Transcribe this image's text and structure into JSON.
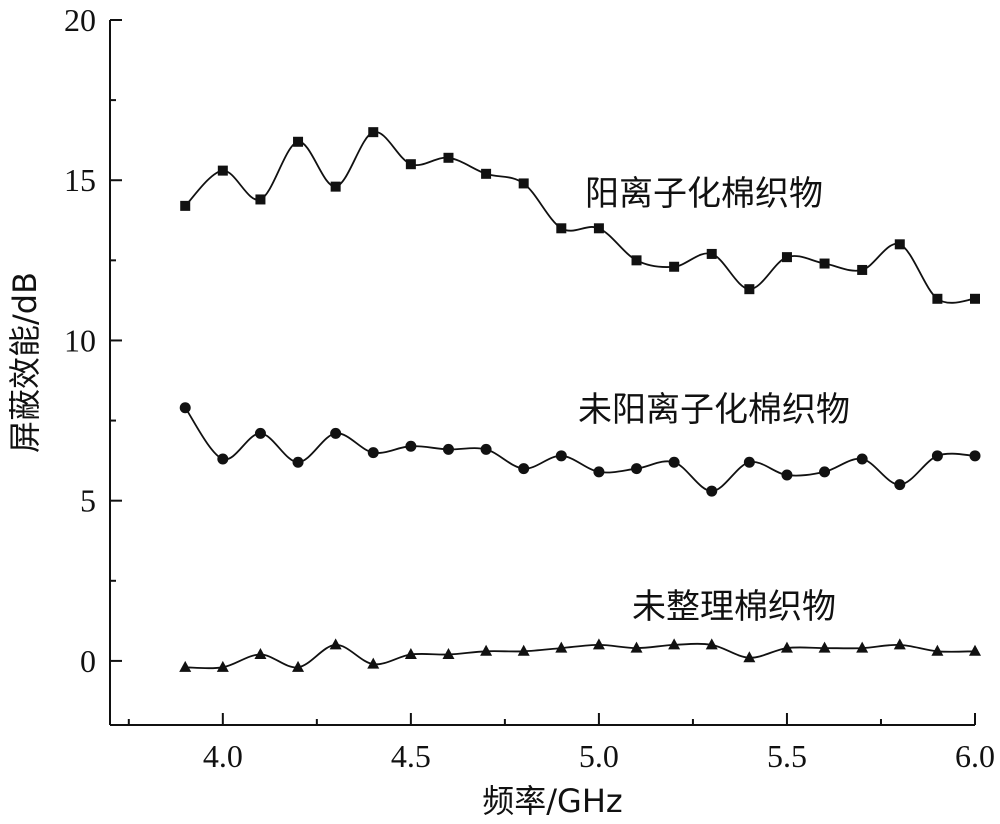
{
  "chart_data": {
    "type": "line",
    "title": "",
    "xlabel": "频率/GHz",
    "ylabel": "屏蔽效能/dB",
    "xlim": [
      3.7,
      6.0
    ],
    "ylim": [
      -2,
      20
    ],
    "xticks": [
      4.0,
      4.5,
      5.0,
      5.5,
      6.0
    ],
    "xtick_labels": [
      "4.0",
      "4.5",
      "5.0",
      "5.5",
      "6.0"
    ],
    "yticks": [
      0,
      5,
      10,
      15,
      20
    ],
    "ytick_labels": [
      "0",
      "5",
      "10",
      "15",
      "20"
    ],
    "grid": false,
    "x": [
      3.9,
      4.0,
      4.1,
      4.2,
      4.3,
      4.4,
      4.5,
      4.6,
      4.7,
      4.8,
      4.9,
      5.0,
      5.1,
      5.2,
      5.3,
      5.4,
      5.5,
      5.6,
      5.7,
      5.8,
      5.9,
      6.0
    ],
    "series": [
      {
        "name": "阳离子化棉织物",
        "marker": "square",
        "values": [
          14.2,
          15.3,
          14.4,
          16.2,
          14.8,
          16.5,
          15.5,
          15.7,
          15.2,
          14.9,
          13.5,
          13.5,
          12.5,
          12.3,
          12.7,
          11.6,
          12.6,
          12.4,
          12.2,
          13.0,
          11.3,
          11.3
        ]
      },
      {
        "name": "未阳离子化棉织物",
        "marker": "circle",
        "values": [
          7.9,
          6.3,
          7.1,
          6.2,
          7.1,
          6.5,
          6.7,
          6.6,
          6.6,
          6.0,
          6.4,
          5.9,
          6.0,
          6.2,
          5.3,
          6.2,
          5.8,
          5.9,
          6.3,
          5.5,
          6.4,
          6.4
        ]
      },
      {
        "name": "未整理棉织物",
        "marker": "triangle",
        "values": [
          -0.2,
          -0.2,
          0.2,
          -0.2,
          0.5,
          -0.1,
          0.2,
          0.2,
          0.3,
          0.3,
          0.4,
          0.5,
          0.4,
          0.5,
          0.5,
          0.1,
          0.4,
          0.4,
          0.4,
          0.5,
          0.3,
          0.3
        ]
      }
    ]
  },
  "colors": {
    "ink": "#111111",
    "background": "#ffffff"
  }
}
